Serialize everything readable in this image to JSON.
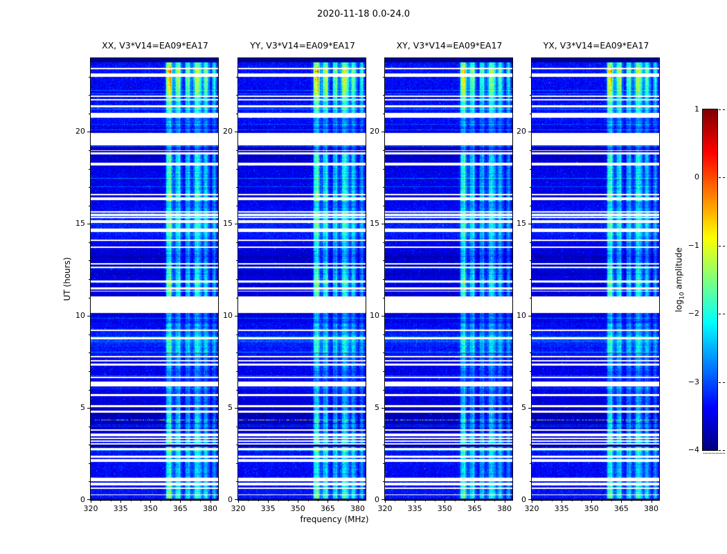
{
  "figure_title": "2020-11-18 0.0-24.0",
  "xlabel": "frequency (MHz)",
  "ylabel": "UT (hours)",
  "colorbar_label_parts": {
    "prefix": "log",
    "sub": "10",
    "suffix": " amplitude"
  },
  "chart_data": {
    "type": "heatmap",
    "title": "2020-11-18 0.0-24.0",
    "baseline": "V3*V14=EA09*EA17",
    "panels": [
      {
        "title": "XX, V3*V14=EA09*EA17",
        "polarization": "XX"
      },
      {
        "title": "YY, V3*V14=EA09*EA17",
        "polarization": "YY"
      },
      {
        "title": "XY, V3*V14=EA09*EA17",
        "polarization": "XY"
      },
      {
        "title": "YX, V3*V14=EA09*EA17",
        "polarization": "YX"
      }
    ],
    "xlabel": "frequency (MHz)",
    "ylabel": "UT (hours)",
    "x_range_mhz": [
      320,
      384
    ],
    "y_range_hours": [
      0,
      24
    ],
    "x_ticks": [
      320,
      335,
      350,
      365,
      380
    ],
    "x_tick_labels": [
      "320",
      "335",
      "350",
      "365",
      "380"
    ],
    "y_ticks": [
      0,
      5,
      10,
      15,
      20
    ],
    "y_tick_labels": [
      "0",
      "5",
      "10",
      "15",
      "20"
    ],
    "colorbar": {
      "label": "log10 amplitude",
      "range": [
        -4,
        1
      ],
      "ticks": [
        1,
        0,
        -1,
        -2,
        -3,
        -4
      ],
      "tick_labels": [
        "1",
        "0",
        "−1",
        "−2",
        "−3",
        "−4"
      ],
      "colormap": "jet"
    },
    "features": {
      "background_log10_amplitude": -3.5,
      "rfi_band_mhz": [
        357,
        383
      ],
      "flagged_time_gaps_hours": [
        [
          10.15,
          11.05
        ],
        [
          19.25,
          19.95
        ]
      ],
      "thin_flagged_lines": "numerous horizontal white flagged rows throughout all panels",
      "colored_interference_row_hour": 4.35,
      "dark_row_hour": 2.95,
      "bright_band_intervals_hours": [
        [
          4.2,
          6.3
        ],
        [
          8.0,
          9.6
        ],
        [
          16.2,
          18.8
        ],
        [
          21.0,
          23.5
        ]
      ]
    }
  }
}
